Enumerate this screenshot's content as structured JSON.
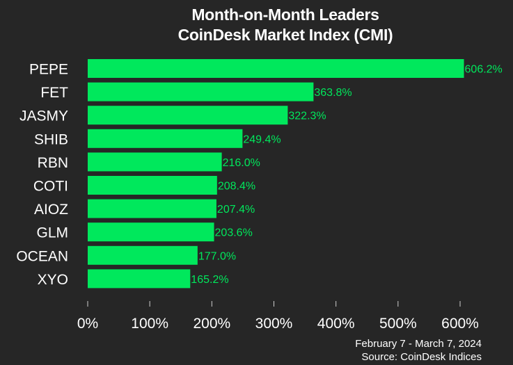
{
  "chart_data": {
    "type": "bar",
    "orientation": "horizontal",
    "title": [
      "Month-on-Month Leaders",
      "CoinDesk Market Index (CMI)"
    ],
    "categories": [
      "PEPE",
      "FET",
      "JASMY",
      "SHIB",
      "RBN",
      "COTI",
      "AIOZ",
      "GLM",
      "OCEAN",
      "XYO"
    ],
    "values": [
      606.2,
      363.8,
      322.3,
      249.4,
      216.0,
      208.4,
      207.4,
      203.6,
      177.0,
      165.2
    ],
    "value_labels": [
      "606.2%",
      "363.8%",
      "322.3%",
      "249.4%",
      "216.0%",
      "208.4%",
      "207.4%",
      "203.6%",
      "177.0%",
      "165.2%"
    ],
    "xlim": [
      0,
      600
    ],
    "x_ticks": [
      0,
      100,
      200,
      300,
      400,
      500,
      600
    ],
    "x_tick_labels": [
      "0%",
      "100%",
      "200%",
      "300%",
      "400%",
      "500%",
      "600%"
    ],
    "xlabel": "",
    "ylabel": "",
    "grid": false,
    "legend": "none",
    "colors": {
      "bar": "#00e85c",
      "value_label": "#00e85c",
      "background": "#262626",
      "text": "#ffffff"
    }
  },
  "footer": {
    "date_range": "February 7 - March 7, 2024",
    "source": "Source: CoinDesk Indices"
  }
}
